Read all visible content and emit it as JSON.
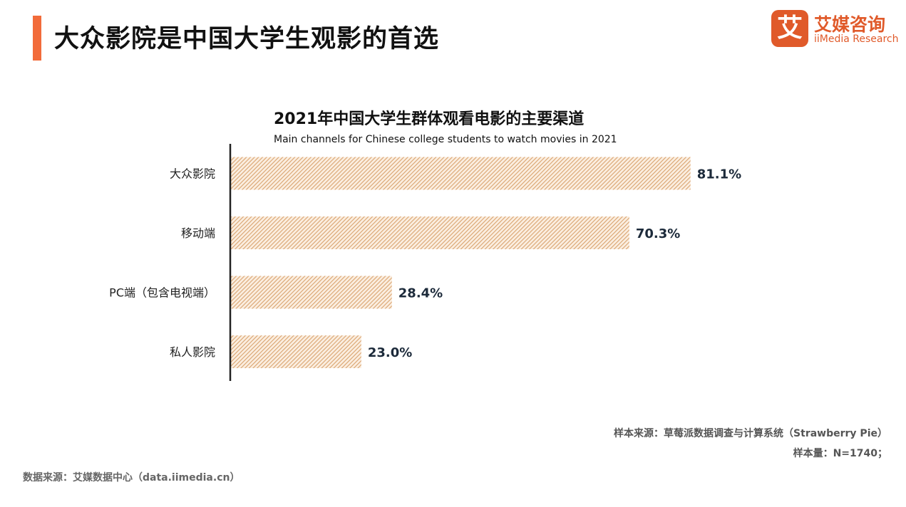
{
  "header": {
    "title": "大众影院是中国大学生观影的首选",
    "accent_color": "#f26b3a"
  },
  "logo": {
    "mark": "艾",
    "name_cn": "艾媒咨询",
    "name_en": "iiMedia Research",
    "color": "#e05a2a"
  },
  "chart_data": {
    "type": "bar",
    "orientation": "horizontal",
    "title": "2021年中国大学生群体观看电影的主要渠道",
    "subtitle": "Main channels for Chinese college students to watch movies in 2021",
    "categories": [
      "大众影院",
      "移动端",
      "PC端（包含电视端）",
      "私人影院"
    ],
    "values": [
      81.1,
      70.3,
      28.4,
      23.0
    ],
    "data_labels": [
      "81.1%",
      "70.3%",
      "28.4%",
      "23.0%"
    ],
    "unit": "%",
    "xlim": [
      0,
      100
    ],
    "grid": false,
    "legend": "none",
    "bar_color": "#d9a36f",
    "bar_fill": "hatched"
  },
  "footer": {
    "sample_source": "样本来源：草莓派数据调查与计算系统（Strawberry Pie）",
    "sample_size": "样本量：N=1740；",
    "data_source": "数据来源：艾媒数据中心（data.iimedia.cn）"
  }
}
